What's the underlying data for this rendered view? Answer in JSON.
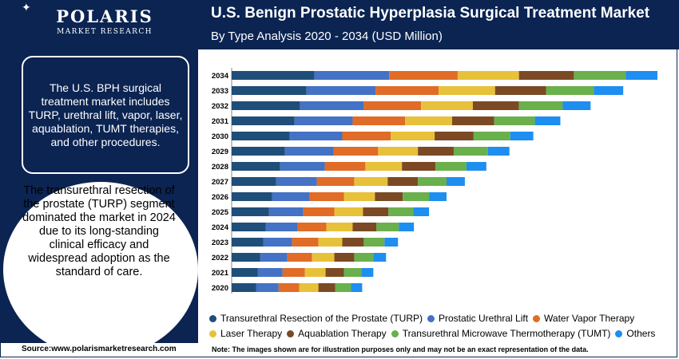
{
  "brand": {
    "name": "POLARIS",
    "tagline": "MARKET RESEARCH"
  },
  "header": {
    "title": "U.S. Benign Prostatic Hyperplasia Surgical Treatment Market",
    "subtitle": "By Type Analysis 2020 - 2034 (USD Million)"
  },
  "sidebar": {
    "summary": "The U.S. BPH surgical treatment market includes TURP, urethral lift, vapor, laser, aquablation, TUMT therapies, and other procedures.",
    "highlight": "The transurethral resection of the prostate (TURP) segment dominated the market in 2024 due to its long-standing clinical efficacy and widespread adoption as the standard of care."
  },
  "footer": {
    "source": "Source:www.polarismarketresearch.com",
    "note": "Note: The images shown are for illustration purposes only and may not be an exact representation of the data."
  },
  "chart_data": {
    "type": "bar",
    "orientation": "horizontal",
    "stacked": true,
    "title": "U.S. Benign Prostatic Hyperplasia Surgical Treatment Market",
    "subtitle": "By Type Analysis 2020 - 2034 (USD Million)",
    "xlabel": "",
    "ylabel": "",
    "xlim": [
      0,
      540
    ],
    "categories": [
      "2034",
      "2033",
      "2032",
      "2031",
      "2030",
      "2029",
      "2028",
      "2027",
      "2026",
      "2025",
      "2024",
      "2023",
      "2022",
      "2021",
      "2020"
    ],
    "series": [
      {
        "name": "Transurethral Resection of the Prostate (TURP)",
        "color": "#1f4e79",
        "values": [
          104,
          94,
          86,
          79,
          73,
          67,
          61,
          56,
          51,
          47,
          43,
          40,
          36,
          33,
          31
        ]
      },
      {
        "name": "Prostatic Urethral Lift",
        "color": "#4472c4",
        "values": [
          94,
          87,
          80,
          73,
          66,
          61,
          56,
          51,
          47,
          43,
          40,
          36,
          34,
          31,
          28
        ]
      },
      {
        "name": "Water Vapor Therapy",
        "color": "#e06c27",
        "values": [
          86,
          79,
          72,
          66,
          61,
          56,
          51,
          47,
          43,
          39,
          36,
          33,
          31,
          28,
          26
        ]
      },
      {
        "name": "Laser Therapy",
        "color": "#e8c13a",
        "values": [
          77,
          71,
          65,
          59,
          55,
          50,
          46,
          42,
          39,
          36,
          33,
          30,
          28,
          26,
          24
        ]
      },
      {
        "name": "Aquablation Therapy",
        "color": "#7b4a24",
        "values": [
          69,
          64,
          58,
          53,
          49,
          45,
          42,
          38,
          35,
          32,
          30,
          27,
          25,
          23,
          21
        ]
      },
      {
        "name": "Transurethral Microwave Thermotherapy (TUMT)",
        "color": "#6ab04c",
        "values": [
          65,
          60,
          55,
          51,
          46,
          43,
          39,
          36,
          33,
          31,
          28,
          26,
          24,
          22,
          20
        ]
      },
      {
        "name": "Others",
        "color": "#1e8ef0",
        "values": [
          40,
          37,
          35,
          32,
          29,
          27,
          25,
          23,
          22,
          20,
          19,
          17,
          16,
          15,
          14
        ]
      }
    ]
  }
}
